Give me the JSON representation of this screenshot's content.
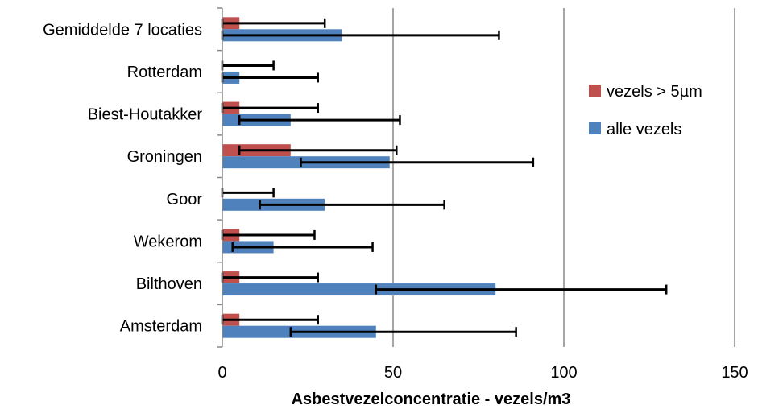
{
  "chart_data": {
    "type": "bar",
    "orientation": "horizontal",
    "title": "",
    "xlabel": "Asbestvezelconcentratie - vezels/m3",
    "ylabel": "",
    "xlim": [
      0,
      150
    ],
    "xticks": [
      "0",
      "50",
      "100",
      "150"
    ],
    "grid": "vertical",
    "legend_position": "right",
    "categories": [
      "Gemiddelde 7 locaties",
      "Rotterdam",
      "Biest-Houtakker",
      "Groningen",
      "Goor",
      "Wekerom",
      "Bilthoven",
      "Amsterdam"
    ],
    "series": [
      {
        "name": "vezels > 5µm",
        "color": "#c0504d",
        "values": [
          5,
          0,
          5,
          20,
          0,
          5,
          5,
          5
        ],
        "err_low": [
          0,
          0,
          0,
          5,
          0,
          0,
          0,
          0
        ],
        "err_high": [
          30,
          15,
          28,
          51,
          15,
          27,
          28,
          28
        ]
      },
      {
        "name": "alle vezels",
        "color": "#4f81bd",
        "values": [
          35,
          5,
          20,
          49,
          30,
          15,
          80,
          45
        ],
        "err_low": [
          0,
          0,
          5,
          23,
          11,
          3,
          45,
          20
        ],
        "err_high": [
          81,
          28,
          52,
          91,
          65,
          44,
          130,
          86
        ]
      }
    ]
  }
}
